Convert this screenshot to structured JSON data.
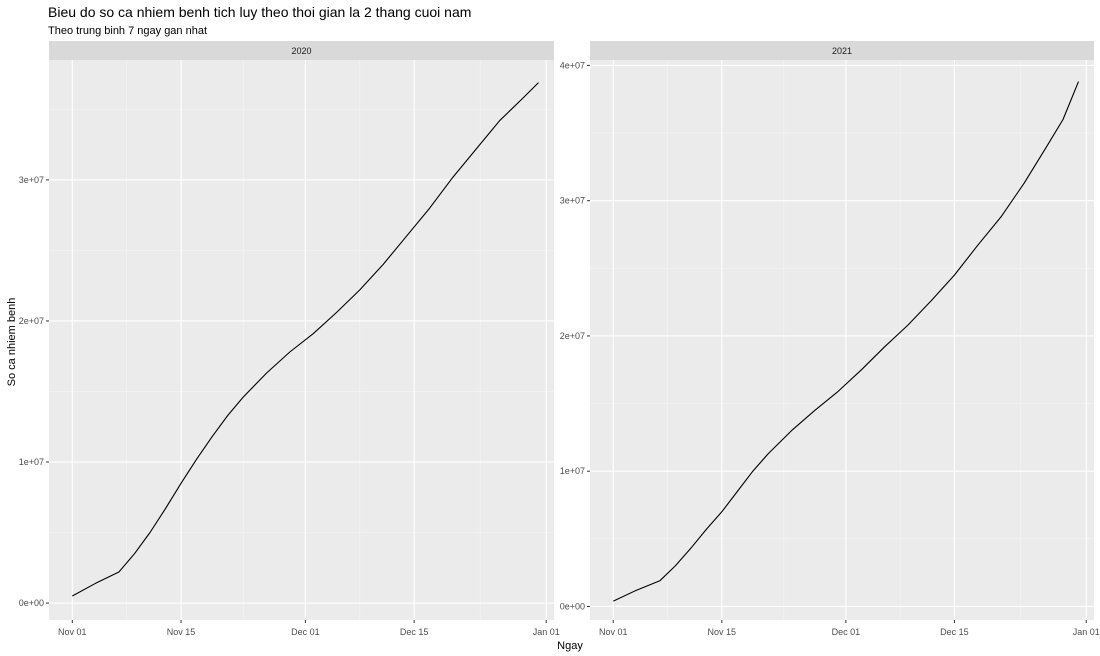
{
  "chart_data": {
    "type": "line",
    "title": "Bieu do so ca nhiem benh tich luy theo thoi gian la 2 thang cuoi nam",
    "subtitle": "Theo trung binh 7 ngay gan nhat",
    "xlabel": "Ngay",
    "ylabel": "So ca nhiem benh",
    "legend": "none",
    "grid": true,
    "panels": [
      {
        "strip": "2020",
        "x_ticks": [
          "Nov 01",
          "Nov 15",
          "Dec 01",
          "Dec 15",
          "Jan 01"
        ],
        "y_ticks": [
          "0e+00",
          "1e+07",
          "2e+07",
          "3e+07"
        ],
        "y_tick_values": [
          0,
          10000000,
          20000000,
          30000000
        ],
        "xlim": [
          "2020-10-29",
          "2021-01-02"
        ],
        "ylim": [
          -1200000,
          38500000
        ],
        "series": [
          {
            "x": [
              "2020-11-01",
              "2020-11-04",
              "2020-11-07",
              "2020-11-09",
              "2020-11-11",
              "2020-11-13",
              "2020-11-15",
              "2020-11-17",
              "2020-11-19",
              "2020-11-21",
              "2020-11-23",
              "2020-11-26",
              "2020-11-29",
              "2020-12-02",
              "2020-12-05",
              "2020-12-08",
              "2020-12-11",
              "2020-12-14",
              "2020-12-17",
              "2020-12-20",
              "2020-12-23",
              "2020-12-26",
              "2020-12-29",
              "2020-12-31"
            ],
            "values": [
              500000,
              1400000,
              2200000,
              3500000,
              5000000,
              6700000,
              8500000,
              10200000,
              11800000,
              13300000,
              14600000,
              16300000,
              17800000,
              19100000,
              20600000,
              22200000,
              24000000,
              26000000,
              28000000,
              30200000,
              32200000,
              34200000,
              35800000,
              36900000
            ]
          }
        ]
      },
      {
        "strip": "2021",
        "x_ticks": [
          "Nov 01",
          "Nov 15",
          "Dec 01",
          "Dec 15",
          "Jan 01"
        ],
        "y_ticks": [
          "0e+00",
          "1e+07",
          "2e+07",
          "3e+07",
          "4e+07"
        ],
        "y_tick_values": [
          0,
          10000000,
          20000000,
          30000000,
          40000000
        ],
        "xlim": [
          "2021-10-29",
          "2022-01-02"
        ],
        "ylim": [
          -1000000,
          40400000
        ],
        "series": [
          {
            "x": [
              "2021-11-01",
              "2021-11-04",
              "2021-11-07",
              "2021-11-09",
              "2021-11-11",
              "2021-11-13",
              "2021-11-15",
              "2021-11-17",
              "2021-11-19",
              "2021-11-21",
              "2021-11-24",
              "2021-11-27",
              "2021-11-30",
              "2021-12-03",
              "2021-12-06",
              "2021-12-09",
              "2021-12-12",
              "2021-12-15",
              "2021-12-18",
              "2021-12-21",
              "2021-12-24",
              "2021-12-27",
              "2021-12-29",
              "2021-12-31"
            ],
            "values": [
              400000,
              1200000,
              1900000,
              3000000,
              4300000,
              5700000,
              7000000,
              8500000,
              10000000,
              11300000,
              13000000,
              14500000,
              15900000,
              17500000,
              19200000,
              20800000,
              22600000,
              24500000,
              26700000,
              28800000,
              31300000,
              34100000,
              36000000,
              38800000
            ]
          }
        ]
      }
    ]
  }
}
